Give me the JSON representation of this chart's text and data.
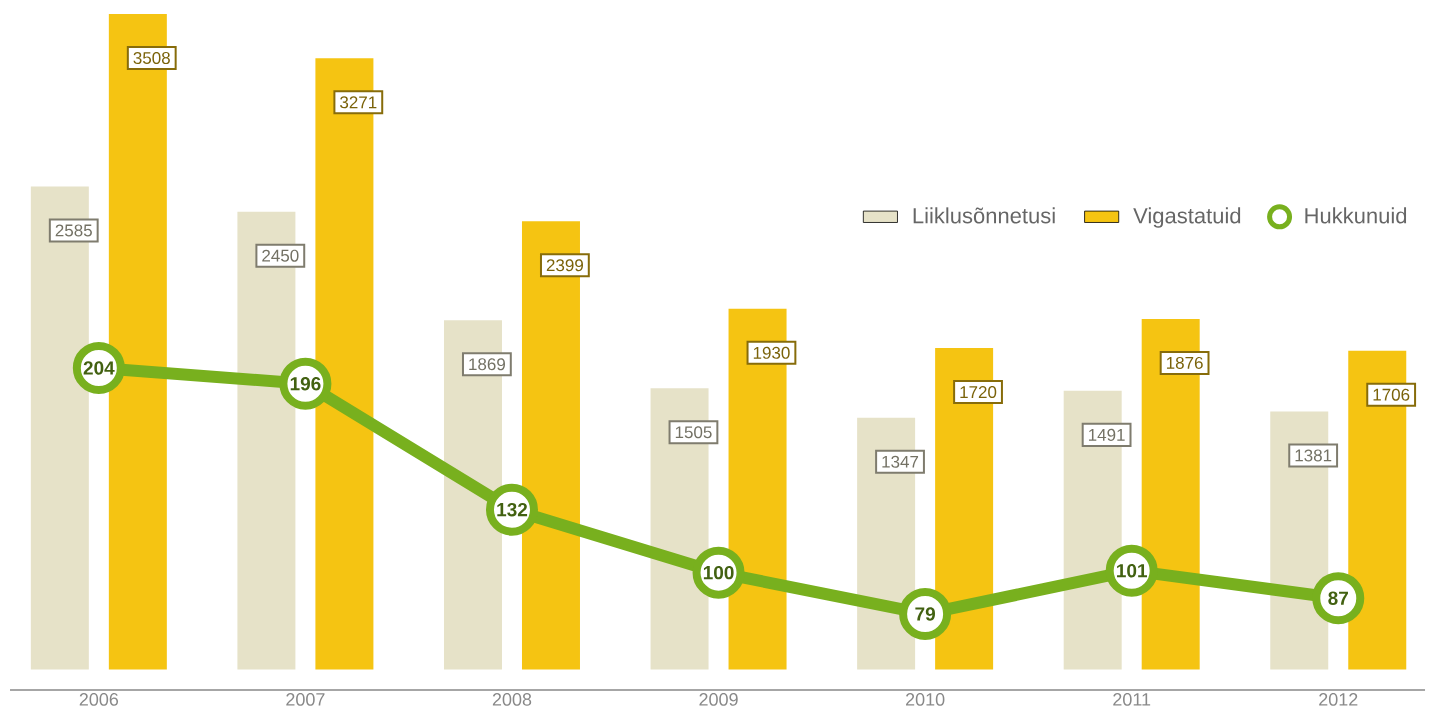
{
  "chart_data": {
    "type": "bar",
    "categories": [
      "2006",
      "2007",
      "2008",
      "2009",
      "2010",
      "2011",
      "2012"
    ],
    "ylim": [
      -110,
      3508
    ],
    "tick_labels": "x",
    "data_labels": true,
    "legend": "top right",
    "marker": "circle",
    "series": [
      {
        "name": "Liiklusõnnetusi",
        "color": "#e6e2c8",
        "values": [
          2585,
          2450,
          1869,
          1505,
          1347,
          1491,
          1381
        ]
      },
      {
        "name": "Vigastatuid",
        "color": "#f5c412",
        "values": [
          3508,
          3271,
          2399,
          1930,
          1720,
          1876,
          1706
        ]
      },
      {
        "name": "Hukkunuid",
        "type": "line",
        "axis": "y2",
        "color": "#78b01e",
        "values": [
          204,
          196,
          132,
          100,
          79,
          101,
          87
        ]
      }
    ]
  }
}
